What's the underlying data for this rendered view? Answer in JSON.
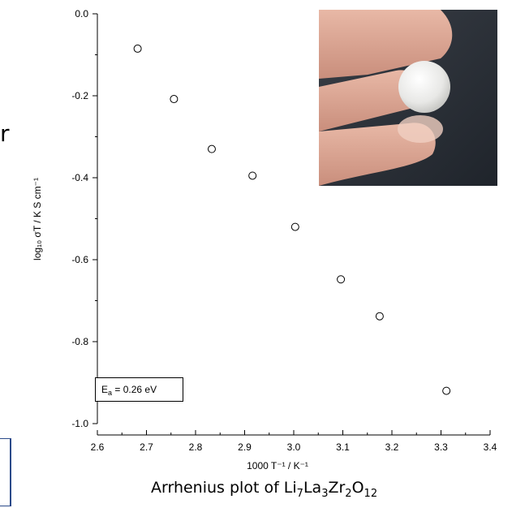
{
  "stray_text": "r",
  "caption": {
    "prefix": "Arrhenius plot of ",
    "formula": [
      [
        "Li",
        "7"
      ],
      [
        "La",
        "3"
      ],
      [
        "Zr",
        "2"
      ],
      [
        "O",
        "12"
      ]
    ]
  },
  "annotation": {
    "symbol": "E",
    "sub": "a",
    "text": " = 0.26 eV"
  },
  "chart_data": {
    "type": "scatter",
    "title": "",
    "xlabel": "1000 T⁻¹ / K⁻¹",
    "ylabel": "log₁₀ σT / K S cm⁻¹",
    "xlim": [
      2.6,
      3.4
    ],
    "ylim": [
      -1.0,
      0.0
    ],
    "xticks": [
      2.6,
      2.7,
      2.8,
      2.9,
      3.0,
      3.1,
      3.2,
      3.3,
      3.4
    ],
    "xtick_labels": [
      "2.6",
      "2.7",
      "2.8",
      "2.9",
      "3.0",
      "3.1",
      "3.2",
      "3.3",
      "3.4"
    ],
    "yticks": [
      0.0,
      -0.2,
      -0.4,
      -0.6,
      -0.8,
      -1.0
    ],
    "ytick_labels": [
      "0.0",
      "-0.2",
      "-0.4",
      "-0.6",
      "-0.8",
      "-1.0"
    ],
    "marker": "open-circle",
    "grid": false,
    "points": [
      {
        "x": 2.682,
        "y": -0.085
      },
      {
        "x": 2.756,
        "y": -0.208
      },
      {
        "x": 2.833,
        "y": -0.33
      },
      {
        "x": 2.916,
        "y": -0.395
      },
      {
        "x": 3.003,
        "y": -0.52
      },
      {
        "x": 3.096,
        "y": -0.648
      },
      {
        "x": 3.175,
        "y": -0.738
      },
      {
        "x": 3.311,
        "y": -0.92
      }
    ]
  },
  "colors": {
    "axis": "#000000",
    "marker_stroke": "#000000",
    "frame": "#2b4a8a"
  }
}
